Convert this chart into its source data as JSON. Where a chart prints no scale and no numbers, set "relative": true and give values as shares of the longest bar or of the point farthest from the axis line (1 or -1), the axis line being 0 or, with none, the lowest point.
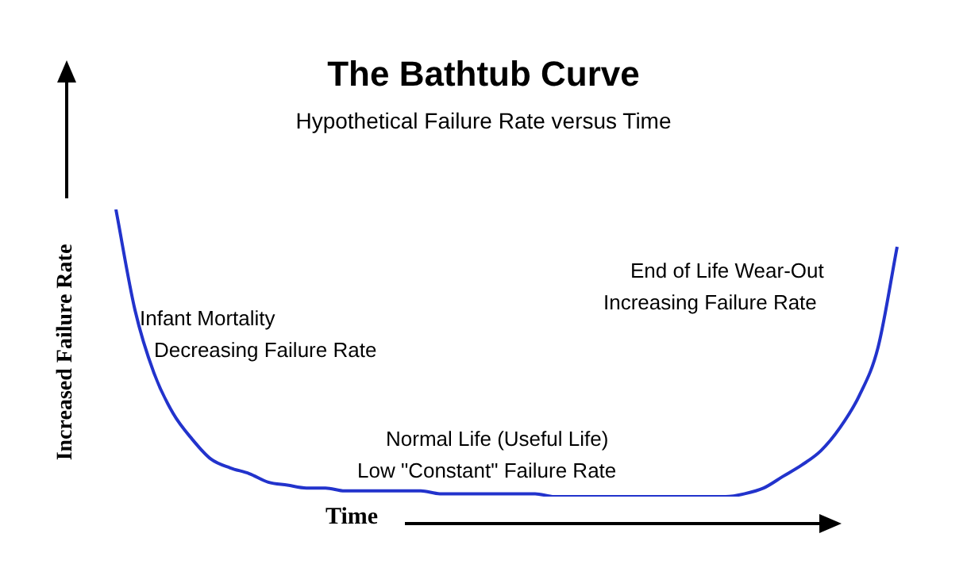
{
  "chart_data": {
    "type": "line",
    "title": "The Bathtub Curve",
    "subtitle": "Hypothetical Failure Rate versus Time",
    "xlabel": "Time",
    "ylabel": "Increased Failure Rate",
    "annotations": [
      "Infant Mortality",
      "Decreasing Failure Rate",
      "Normal Life (Useful Life)",
      "Low \"Constant\" Failure Rate",
      "End of Life Wear-Out",
      "Increasing Failure Rate"
    ],
    "relative": true,
    "legend": false,
    "marker": "none",
    "color": "#2233cc",
    "categories": [
      null,
      null,
      null,
      null,
      null,
      null,
      null,
      null,
      null,
      null,
      null,
      null,
      null,
      null,
      null,
      null,
      null,
      null,
      null,
      null,
      null,
      null,
      null,
      null,
      null,
      null,
      null,
      null,
      null,
      null,
      null,
      null,
      null,
      null,
      null,
      null,
      null,
      null,
      null,
      null,
      null,
      null
    ],
    "values": [
      1,
      0.65,
      0.43,
      0.29,
      0.2,
      0.13,
      0.1,
      0.08,
      0.05,
      0.04,
      0.03,
      0.03,
      0.02,
      0.02,
      0.02,
      0.02,
      0.02,
      0.01,
      0.01,
      0.01,
      0.01,
      0.01,
      0.01,
      0,
      0,
      0,
      0,
      0,
      0,
      0,
      0,
      0,
      0,
      0.01,
      0.03,
      0.07,
      0.11,
      0.16,
      0.24,
      0.35,
      0.52,
      0.87
    ]
  }
}
